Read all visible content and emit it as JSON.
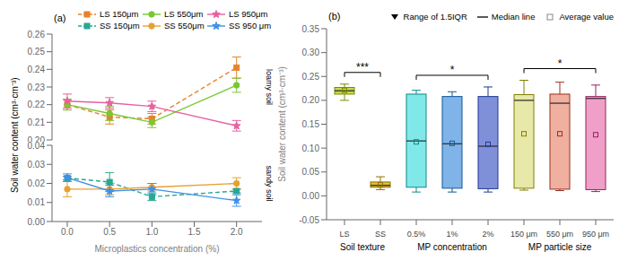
{
  "chart_data": [
    {
      "type": "line",
      "ylabel": "Soil water content (cm³·cm⁻³)",
      "annotations": [
        "(a)",
        "loamy soil"
      ],
      "legend": "top",
      "tick_labels": "y",
      "x": [
        0.0,
        0.5,
        1.0,
        2.0
      ],
      "xlim": [
        -0.18,
        2.3
      ],
      "ylim": [
        0.2,
        0.26
      ],
      "yticks": [
        {
          "value": 0.2,
          "label": "0.20"
        },
        0.21,
        0.22,
        0.23,
        0.24,
        0.25,
        0.26
      ],
      "series": [
        {
          "name": "LS 150μm",
          "color": "#E8822A",
          "line_style": "dashed",
          "marker": "square",
          "values": [
            0.22,
            0.213,
            0.212,
            0.241
          ],
          "errors": [
            0.003,
            0.004,
            0.003,
            0.006
          ]
        },
        {
          "name": "LS 550μm",
          "color": "#78C832",
          "line_style": "solid",
          "marker": "circle",
          "values": [
            0.22,
            0.215,
            0.21,
            0.231
          ],
          "errors": [
            0.003,
            0.004,
            0.003,
            0.004
          ]
        },
        {
          "name": "LS 950μm",
          "color": "#E860A0",
          "line_style": "solid",
          "marker": "star",
          "values": [
            0.222,
            0.221,
            0.219,
            0.208
          ],
          "errors": [
            0.004,
            0.003,
            0.003,
            0.003
          ]
        }
      ]
    },
    {
      "type": "line",
      "xlabel": "Microplastics concentration (%)",
      "annotations": [
        "sandy soil"
      ],
      "x": [
        0.0,
        0.5,
        1.0,
        2.0
      ],
      "xlim": [
        -0.18,
        2.3
      ],
      "xticks": [
        {
          "value": 0,
          "label": "0.0"
        },
        0.5,
        {
          "value": 1,
          "label": "1.0"
        },
        1.5,
        {
          "value": 2,
          "label": "2.0"
        }
      ],
      "ylim": [
        0,
        0.04
      ],
      "yticks": [
        {
          "value": 0,
          "label": "0.00"
        },
        0.01,
        0.02,
        0.03,
        0.04
      ],
      "series": [
        {
          "name": "SS 150μm",
          "color": "#28A890",
          "line_style": "dashed",
          "marker": "square",
          "values": [
            0.0228,
            0.0207,
            0.013,
            0.016
          ],
          "errors": [
            0.001,
            0.005,
            0.002,
            0.001
          ]
        },
        {
          "name": "SS 550μm",
          "color": "#E8A030",
          "line_style": "solid",
          "marker": "circle",
          "values": [
            0.017,
            0.017,
            0.018,
            0.02
          ],
          "errors": [
            0.004,
            0.003,
            0.002,
            0.003
          ]
        },
        {
          "name": "SS 950 μm",
          "color": "#4090E8",
          "line_style": "solid",
          "marker": "star",
          "values": [
            0.023,
            0.016,
            0.017,
            0.011
          ],
          "errors": [
            0.002,
            0.003,
            0.003,
            0.003
          ]
        }
      ]
    },
    {
      "type": "box",
      "ylabel": "Soil water content (cm³·cm⁻³)",
      "annotations": [
        "(b)"
      ],
      "legend": "top",
      "legend_labels": [
        "Range of 1.5IQR",
        "Median line",
        "Average value"
      ],
      "ylim": [
        -0.05,
        0.35
      ],
      "yticks": [
        -0.05,
        {
          "value": 0,
          "label": "0.00"
        },
        0.05,
        {
          "value": 0.1,
          "label": "0.10"
        },
        0.15,
        {
          "value": 0.2,
          "label": "0.20"
        },
        0.25,
        {
          "value": 0.3,
          "label": "0.30"
        },
        0.35
      ],
      "groups": [
        {
          "name": "Soil texture",
          "categories": [
            "LS",
            "SS"
          ],
          "median": [
            0.22,
            0.022
          ],
          "q1": [
            0.213,
            0.018
          ],
          "q3": [
            0.227,
            0.029
          ],
          "whislo": [
            0.2,
            0.013
          ],
          "whishi": [
            0.234,
            0.04
          ],
          "mean": [
            0.221,
            0.023
          ],
          "colors": [
            "#C8D848",
            "#E0C030"
          ],
          "edge_colors": [
            "#7A8A00",
            "#907000"
          ],
          "significance": [
            {
              "from": "LS",
              "to": "SS",
              "label": "***"
            }
          ]
        },
        {
          "name": "MP concentration",
          "categories": [
            "0.5%",
            "1%",
            "2%"
          ],
          "median": [
            0.115,
            0.109,
            0.104
          ],
          "q1": [
            0.018,
            0.016,
            0.015
          ],
          "q3": [
            0.213,
            0.208,
            0.208
          ],
          "whislo": [
            0.008,
            0.008,
            0.008
          ],
          "whishi": [
            0.221,
            0.218,
            0.228
          ],
          "mean": [
            0.113,
            0.11,
            0.108
          ],
          "colors": [
            "#80E8E8",
            "#80B4E8",
            "#8090D8"
          ],
          "edge_colors": [
            "#108888",
            "#105898",
            "#203898"
          ],
          "significance": [
            {
              "from": "0.5%",
              "to": "2%",
              "label": "*"
            }
          ]
        },
        {
          "name": "MP particle size",
          "categories": [
            "150 μm",
            "550 μm",
            "950 μm"
          ],
          "median": [
            0.2,
            0.194,
            0.204
          ],
          "q1": [
            0.016,
            0.014,
            0.013
          ],
          "q3": [
            0.212,
            0.213,
            0.208
          ],
          "whislo": [
            0.012,
            0.011,
            0.009
          ],
          "whishi": [
            0.242,
            0.238,
            0.232
          ],
          "mean": [
            0.13,
            0.13,
            0.128
          ],
          "colors": [
            "#E8E8A8",
            "#F0B0A0",
            "#F0A0C8"
          ],
          "edge_colors": [
            "#808000",
            "#983020",
            "#982060"
          ],
          "significance": [
            {
              "from": "150 μm",
              "to": "950 μm",
              "label": "*"
            }
          ]
        }
      ]
    }
  ]
}
